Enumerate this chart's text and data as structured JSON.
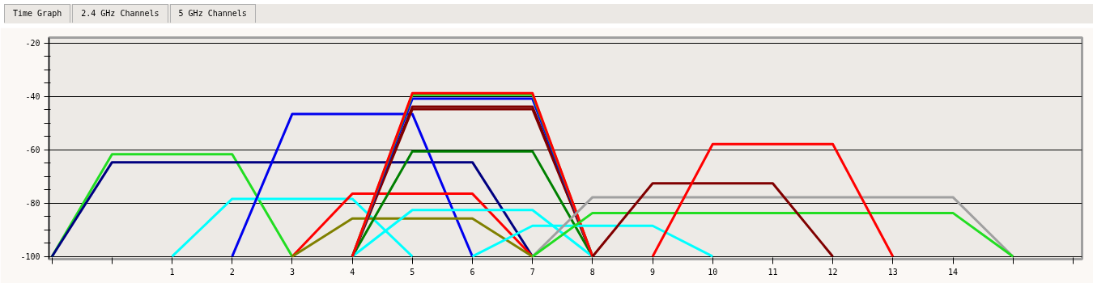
{
  "chart_data": {
    "type": "line",
    "annotations": [
      "Time Graph",
      "2.4 GHz Channels",
      "5 GHz Channels"
    ],
    "xlim": [
      -1.05,
      16.15
    ],
    "ylim": [
      -101,
      -18
    ],
    "xticks": [
      {
        "value": -1,
        "label": null
      },
      {
        "value": 0,
        "label": null
      },
      1,
      2,
      3,
      4,
      5,
      6,
      7,
      8,
      9,
      10,
      11,
      12,
      13,
      14,
      {
        "value": 15,
        "label": null
      },
      {
        "value": 16,
        "label": null
      }
    ],
    "yticks": [
      -20,
      {
        "value": -25,
        "label": null
      },
      {
        "value": -30,
        "label": null
      },
      {
        "value": -35,
        "label": null
      },
      -40,
      {
        "value": -45,
        "label": null
      },
      {
        "value": -50,
        "label": null
      },
      {
        "value": -55,
        "label": null
      },
      -60,
      {
        "value": -65,
        "label": null
      },
      {
        "value": -70,
        "label": null
      },
      {
        "value": -75,
        "label": null
      },
      -80,
      {
        "value": -85,
        "label": null
      },
      {
        "value": -90,
        "label": null
      },
      {
        "value": -95,
        "label": null
      },
      -100
    ],
    "grid": "y",
    "marker": "none",
    "line_style": "solid",
    "series": [
      {
        "color": "#22dd22",
        "x": [
          -1,
          0,
          2,
          3
        ],
        "values": [
          -100,
          -61.7,
          -61.7,
          -100
        ]
      },
      {
        "color": "#000080",
        "x": [
          -1,
          0,
          6,
          7
        ],
        "values": [
          -100,
          -64.7,
          -64.7,
          -100
        ]
      },
      {
        "color": "#00ffff",
        "x": [
          1,
          2,
          4,
          5
        ],
        "values": [
          -100,
          -78.4,
          -78.4,
          -100
        ]
      },
      {
        "color": "#0000ee",
        "x": [
          2,
          3,
          5,
          6
        ],
        "values": [
          -100,
          -46.6,
          -46.6,
          -100
        ]
      },
      {
        "color": "#ff0000",
        "x": [
          3,
          4,
          6,
          7
        ],
        "values": [
          -100,
          -76.5,
          -76.5,
          -100
        ]
      },
      {
        "color": "#808000",
        "x": [
          3,
          4,
          6,
          7
        ],
        "values": [
          -100,
          -85.8,
          -85.8,
          -100
        ]
      },
      {
        "color": "#008000",
        "x": [
          4,
          5,
          7,
          8
        ],
        "values": [
          -100,
          -60.6,
          -60.6,
          -100
        ]
      },
      {
        "color": "#00ffff",
        "x": [
          4,
          5,
          7,
          8
        ],
        "values": [
          -100,
          -82.6,
          -82.6,
          -100
        ]
      },
      {
        "color": "#800000",
        "x": [
          4,
          5,
          7,
          8
        ],
        "values": [
          -100,
          -44.8,
          -44.8,
          -100
        ]
      },
      {
        "color": "#800000",
        "x": [
          4,
          5,
          7,
          8
        ],
        "values": [
          -100,
          -43.9,
          -43.9,
          -100
        ]
      },
      {
        "color": "#0000ee",
        "x": [
          4,
          5,
          7,
          8
        ],
        "values": [
          -100,
          -40.9,
          -40.9,
          -100
        ]
      },
      {
        "color": "#22dd22",
        "x": [
          4,
          5,
          7,
          8
        ],
        "values": [
          -100,
          -39.4,
          -39.4,
          -100
        ]
      },
      {
        "color": "#ff0000",
        "x": [
          4,
          5,
          7,
          8
        ],
        "values": [
          -100,
          -38.8,
          -38.8,
          -100
        ]
      },
      {
        "color": "#00ffff",
        "x": [
          6,
          7,
          9,
          10
        ],
        "values": [
          -100,
          -88.5,
          -88.5,
          -100
        ]
      },
      {
        "color": "#a0a0a0",
        "x": [
          7,
          8,
          14,
          15
        ],
        "values": [
          -100,
          -77.8,
          -77.8,
          -100
        ]
      },
      {
        "color": "#22dd22",
        "x": [
          7,
          8,
          14,
          15
        ],
        "values": [
          -100,
          -83.7,
          -83.7,
          -100
        ]
      },
      {
        "color": "#800000",
        "x": [
          8,
          9,
          11,
          12
        ],
        "values": [
          -100,
          -72.6,
          -72.6,
          -100
        ]
      },
      {
        "color": "#ff0000",
        "x": [
          9,
          10,
          12,
          13
        ],
        "values": [
          -100,
          -57.9,
          -57.9,
          -100
        ]
      }
    ]
  }
}
